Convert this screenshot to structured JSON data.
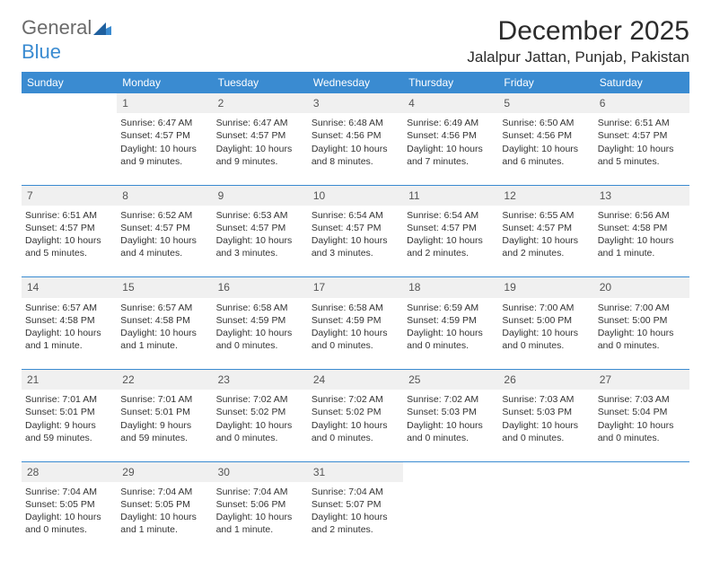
{
  "logo": {
    "part1": "General",
    "part2": "Blue"
  },
  "title": "December 2025",
  "location": "Jalalpur Jattan, Punjab, Pakistan",
  "colors": {
    "header_bg": "#3a8bd1",
    "header_text": "#ffffff",
    "dayrow_bg": "#f0f0f0",
    "dayrow_text": "#555555",
    "body_text": "#333333",
    "rule": "#3a8bd1",
    "page_bg": "#ffffff",
    "logo_gray": "#6b6b6b",
    "logo_blue": "#3a8bd1"
  },
  "typography": {
    "title_fontsize": 30,
    "location_fontsize": 17,
    "header_fontsize": 12,
    "daynum_fontsize": 12,
    "cell_fontsize": 10.5,
    "logo_fontsize": 22
  },
  "weekdays": [
    "Sunday",
    "Monday",
    "Tuesday",
    "Wednesday",
    "Thursday",
    "Friday",
    "Saturday"
  ],
  "weeks": [
    {
      "nums": [
        "",
        "1",
        "2",
        "3",
        "4",
        "5",
        "6"
      ],
      "cells": [
        {
          "lines": []
        },
        {
          "lines": [
            "Sunrise: 6:47 AM",
            "Sunset: 4:57 PM",
            "Daylight: 10 hours",
            "and 9 minutes."
          ]
        },
        {
          "lines": [
            "Sunrise: 6:47 AM",
            "Sunset: 4:57 PM",
            "Daylight: 10 hours",
            "and 9 minutes."
          ]
        },
        {
          "lines": [
            "Sunrise: 6:48 AM",
            "Sunset: 4:56 PM",
            "Daylight: 10 hours",
            "and 8 minutes."
          ]
        },
        {
          "lines": [
            "Sunrise: 6:49 AM",
            "Sunset: 4:56 PM",
            "Daylight: 10 hours",
            "and 7 minutes."
          ]
        },
        {
          "lines": [
            "Sunrise: 6:50 AM",
            "Sunset: 4:56 PM",
            "Daylight: 10 hours",
            "and 6 minutes."
          ]
        },
        {
          "lines": [
            "Sunrise: 6:51 AM",
            "Sunset: 4:57 PM",
            "Daylight: 10 hours",
            "and 5 minutes."
          ]
        }
      ]
    },
    {
      "nums": [
        "7",
        "8",
        "9",
        "10",
        "11",
        "12",
        "13"
      ],
      "cells": [
        {
          "lines": [
            "Sunrise: 6:51 AM",
            "Sunset: 4:57 PM",
            "Daylight: 10 hours",
            "and 5 minutes."
          ]
        },
        {
          "lines": [
            "Sunrise: 6:52 AM",
            "Sunset: 4:57 PM",
            "Daylight: 10 hours",
            "and 4 minutes."
          ]
        },
        {
          "lines": [
            "Sunrise: 6:53 AM",
            "Sunset: 4:57 PM",
            "Daylight: 10 hours",
            "and 3 minutes."
          ]
        },
        {
          "lines": [
            "Sunrise: 6:54 AM",
            "Sunset: 4:57 PM",
            "Daylight: 10 hours",
            "and 3 minutes."
          ]
        },
        {
          "lines": [
            "Sunrise: 6:54 AM",
            "Sunset: 4:57 PM",
            "Daylight: 10 hours",
            "and 2 minutes."
          ]
        },
        {
          "lines": [
            "Sunrise: 6:55 AM",
            "Sunset: 4:57 PM",
            "Daylight: 10 hours",
            "and 2 minutes."
          ]
        },
        {
          "lines": [
            "Sunrise: 6:56 AM",
            "Sunset: 4:58 PM",
            "Daylight: 10 hours",
            "and 1 minute."
          ]
        }
      ]
    },
    {
      "nums": [
        "14",
        "15",
        "16",
        "17",
        "18",
        "19",
        "20"
      ],
      "cells": [
        {
          "lines": [
            "Sunrise: 6:57 AM",
            "Sunset: 4:58 PM",
            "Daylight: 10 hours",
            "and 1 minute."
          ]
        },
        {
          "lines": [
            "Sunrise: 6:57 AM",
            "Sunset: 4:58 PM",
            "Daylight: 10 hours",
            "and 1 minute."
          ]
        },
        {
          "lines": [
            "Sunrise: 6:58 AM",
            "Sunset: 4:59 PM",
            "Daylight: 10 hours",
            "and 0 minutes."
          ]
        },
        {
          "lines": [
            "Sunrise: 6:58 AM",
            "Sunset: 4:59 PM",
            "Daylight: 10 hours",
            "and 0 minutes."
          ]
        },
        {
          "lines": [
            "Sunrise: 6:59 AM",
            "Sunset: 4:59 PM",
            "Daylight: 10 hours",
            "and 0 minutes."
          ]
        },
        {
          "lines": [
            "Sunrise: 7:00 AM",
            "Sunset: 5:00 PM",
            "Daylight: 10 hours",
            "and 0 minutes."
          ]
        },
        {
          "lines": [
            "Sunrise: 7:00 AM",
            "Sunset: 5:00 PM",
            "Daylight: 10 hours",
            "and 0 minutes."
          ]
        }
      ]
    },
    {
      "nums": [
        "21",
        "22",
        "23",
        "24",
        "25",
        "26",
        "27"
      ],
      "cells": [
        {
          "lines": [
            "Sunrise: 7:01 AM",
            "Sunset: 5:01 PM",
            "Daylight: 9 hours",
            "and 59 minutes."
          ]
        },
        {
          "lines": [
            "Sunrise: 7:01 AM",
            "Sunset: 5:01 PM",
            "Daylight: 9 hours",
            "and 59 minutes."
          ]
        },
        {
          "lines": [
            "Sunrise: 7:02 AM",
            "Sunset: 5:02 PM",
            "Daylight: 10 hours",
            "and 0 minutes."
          ]
        },
        {
          "lines": [
            "Sunrise: 7:02 AM",
            "Sunset: 5:02 PM",
            "Daylight: 10 hours",
            "and 0 minutes."
          ]
        },
        {
          "lines": [
            "Sunrise: 7:02 AM",
            "Sunset: 5:03 PM",
            "Daylight: 10 hours",
            "and 0 minutes."
          ]
        },
        {
          "lines": [
            "Sunrise: 7:03 AM",
            "Sunset: 5:03 PM",
            "Daylight: 10 hours",
            "and 0 minutes."
          ]
        },
        {
          "lines": [
            "Sunrise: 7:03 AM",
            "Sunset: 5:04 PM",
            "Daylight: 10 hours",
            "and 0 minutes."
          ]
        }
      ]
    },
    {
      "nums": [
        "28",
        "29",
        "30",
        "31",
        "",
        "",
        ""
      ],
      "cells": [
        {
          "lines": [
            "Sunrise: 7:04 AM",
            "Sunset: 5:05 PM",
            "Daylight: 10 hours",
            "and 0 minutes."
          ]
        },
        {
          "lines": [
            "Sunrise: 7:04 AM",
            "Sunset: 5:05 PM",
            "Daylight: 10 hours",
            "and 1 minute."
          ]
        },
        {
          "lines": [
            "Sunrise: 7:04 AM",
            "Sunset: 5:06 PM",
            "Daylight: 10 hours",
            "and 1 minute."
          ]
        },
        {
          "lines": [
            "Sunrise: 7:04 AM",
            "Sunset: 5:07 PM",
            "Daylight: 10 hours",
            "and 2 minutes."
          ]
        },
        {
          "lines": []
        },
        {
          "lines": []
        },
        {
          "lines": []
        }
      ]
    }
  ]
}
